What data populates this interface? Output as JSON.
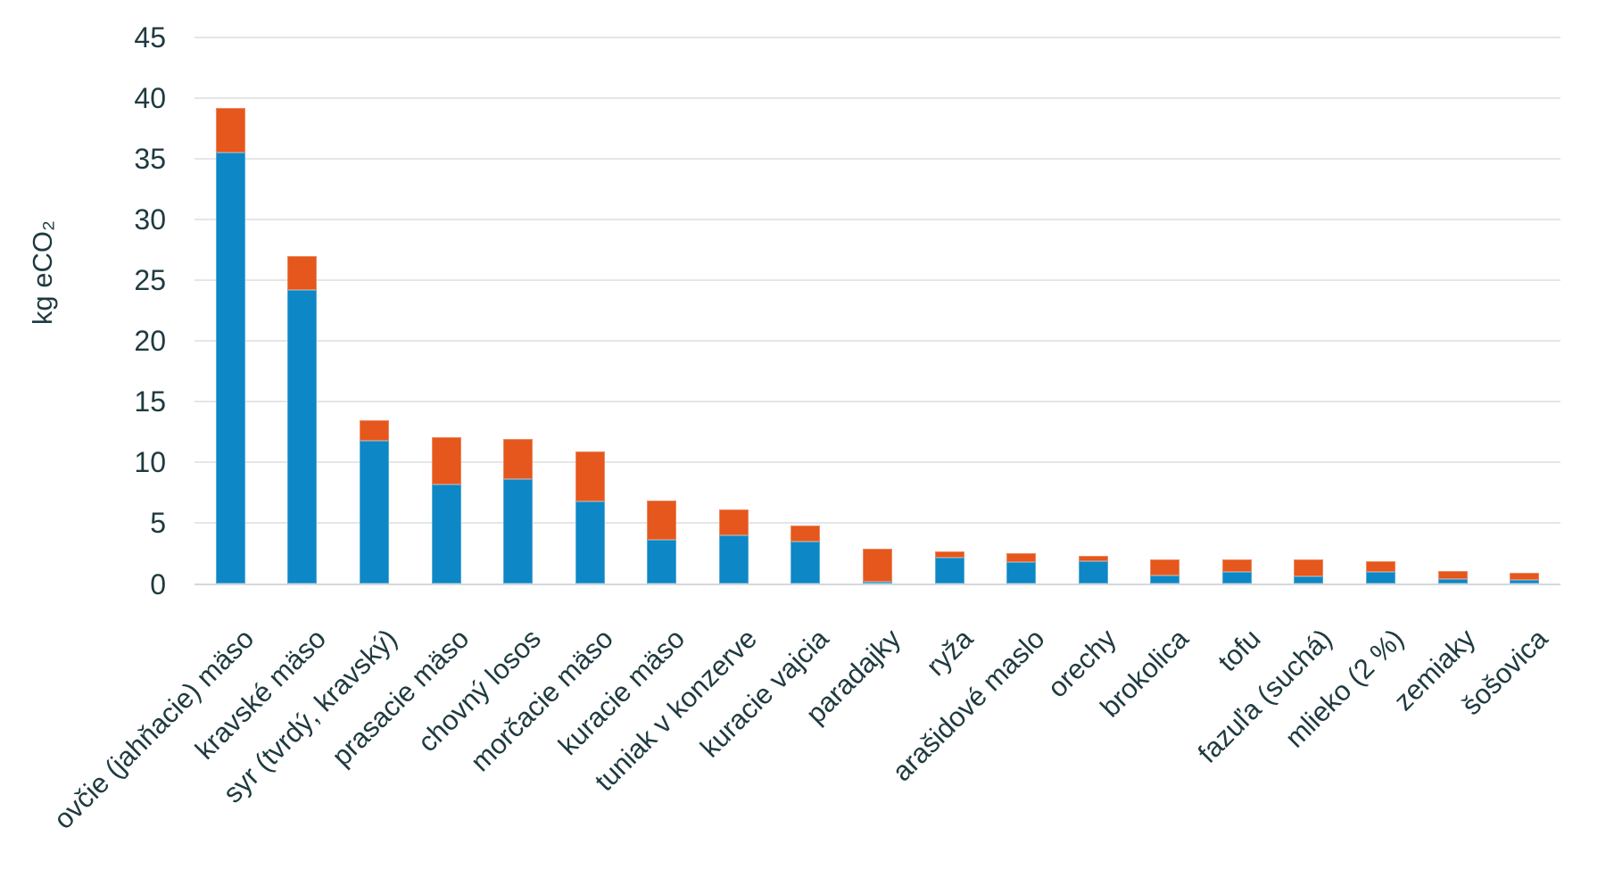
{
  "chart_data": {
    "type": "bar",
    "stacked": true,
    "ylabel": "kg eCO₂",
    "ylim": [
      0,
      45
    ],
    "yticks": [
      0,
      5,
      10,
      15,
      20,
      25,
      30,
      35,
      40,
      45
    ],
    "grid": "horizontal",
    "legend": "none",
    "categories": [
      "ovčie (jahňacie) mäso",
      "kravské mäso",
      "syr (tvrdý, kravský)",
      "prasacie mäso",
      "chovný losos",
      "morčacie mäso",
      "kuracie mäso",
      "tuniak v konzerve",
      "kuracie vajcia",
      "paradajky",
      "ryža",
      "arašidové maslo",
      "orechy",
      "brokolica",
      "tofu",
      "fazuľa (suchá)",
      "mlieko (2 %)",
      "zemiaky",
      "šošovica"
    ],
    "series": [
      {
        "color": "#0D87C5",
        "values": [
          35.5,
          24.2,
          11.8,
          8.2,
          8.6,
          6.8,
          3.6,
          4.0,
          3.5,
          0.2,
          2.2,
          1.8,
          1.9,
          0.7,
          1.0,
          0.6,
          1.0,
          0.4,
          0.3
        ]
      },
      {
        "color": "#E5571C",
        "values": [
          3.7,
          2.8,
          1.7,
          3.9,
          3.3,
          4.1,
          3.3,
          2.1,
          1.3,
          2.7,
          0.5,
          0.7,
          0.4,
          1.3,
          1.0,
          1.4,
          0.9,
          0.7,
          0.6
        ]
      }
    ]
  },
  "colors": {
    "bar_blue": "#0D87C5",
    "bar_orange": "#E5571C",
    "text": "#1E3A40",
    "gridline": "#E4E6E8",
    "axis_line": "#D5D8DA",
    "background": "#FFFFFF"
  }
}
